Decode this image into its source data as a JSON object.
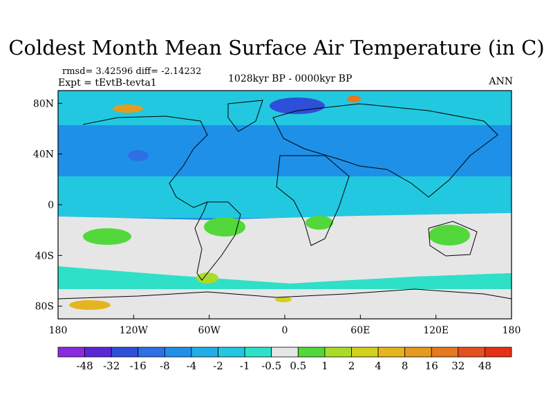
{
  "title": "Coldest Month Mean Surface Air Temperature (in C)",
  "stats": {
    "line": "rmsd= 3.42596 diff= -2.14232",
    "expt": "Expt = tEvtB-tevta1"
  },
  "period": "1028kyr BP - 0000kyr BP",
  "season": "ANN",
  "map": {
    "lat_labels": [
      {
        "lat": 80,
        "label": "80N"
      },
      {
        "lat": 40,
        "label": "40N"
      },
      {
        "lat": 0,
        "label": "0"
      },
      {
        "lat": -40,
        "label": "40S"
      },
      {
        "lat": -80,
        "label": "80S"
      }
    ],
    "lon_labels": [
      {
        "lon": -180,
        "label": "180"
      },
      {
        "lon": -120,
        "label": "120W"
      },
      {
        "lon": -60,
        "label": "60W"
      },
      {
        "lon": 0,
        "label": "0"
      },
      {
        "lon": 60,
        "label": "60E"
      },
      {
        "lon": 120,
        "label": "120E"
      },
      {
        "lon": 180,
        "label": "180"
      }
    ]
  },
  "colorbar": {
    "colors": [
      "#8a2be2",
      "#5a28d6",
      "#2f4fd8",
      "#2f6fe6",
      "#1e90e8",
      "#20aee8",
      "#22c8e0",
      "#2ee0c8",
      "#e6e6e6",
      "#52d83a",
      "#a8dc28",
      "#d2d21e",
      "#e6b41e",
      "#e69a1e",
      "#e6781e",
      "#e6501e",
      "#e63214"
    ],
    "labels": [
      "-48",
      "-32",
      "-16",
      "-8",
      "-4",
      "-2",
      "-1",
      "-0.5",
      "0.5",
      "1",
      "2",
      "4",
      "8",
      "16",
      "32",
      "48"
    ]
  },
  "palette": {
    "blue": "#1e90e8",
    "lightblue": "#22c8e0",
    "navy": "#2f4fd8",
    "teal": "#2ee0c8",
    "grey": "#e6e6e6",
    "green": "#52d83a",
    "lime": "#a8dc28",
    "yellow": "#d2d21e",
    "orange": "#e6781e"
  }
}
